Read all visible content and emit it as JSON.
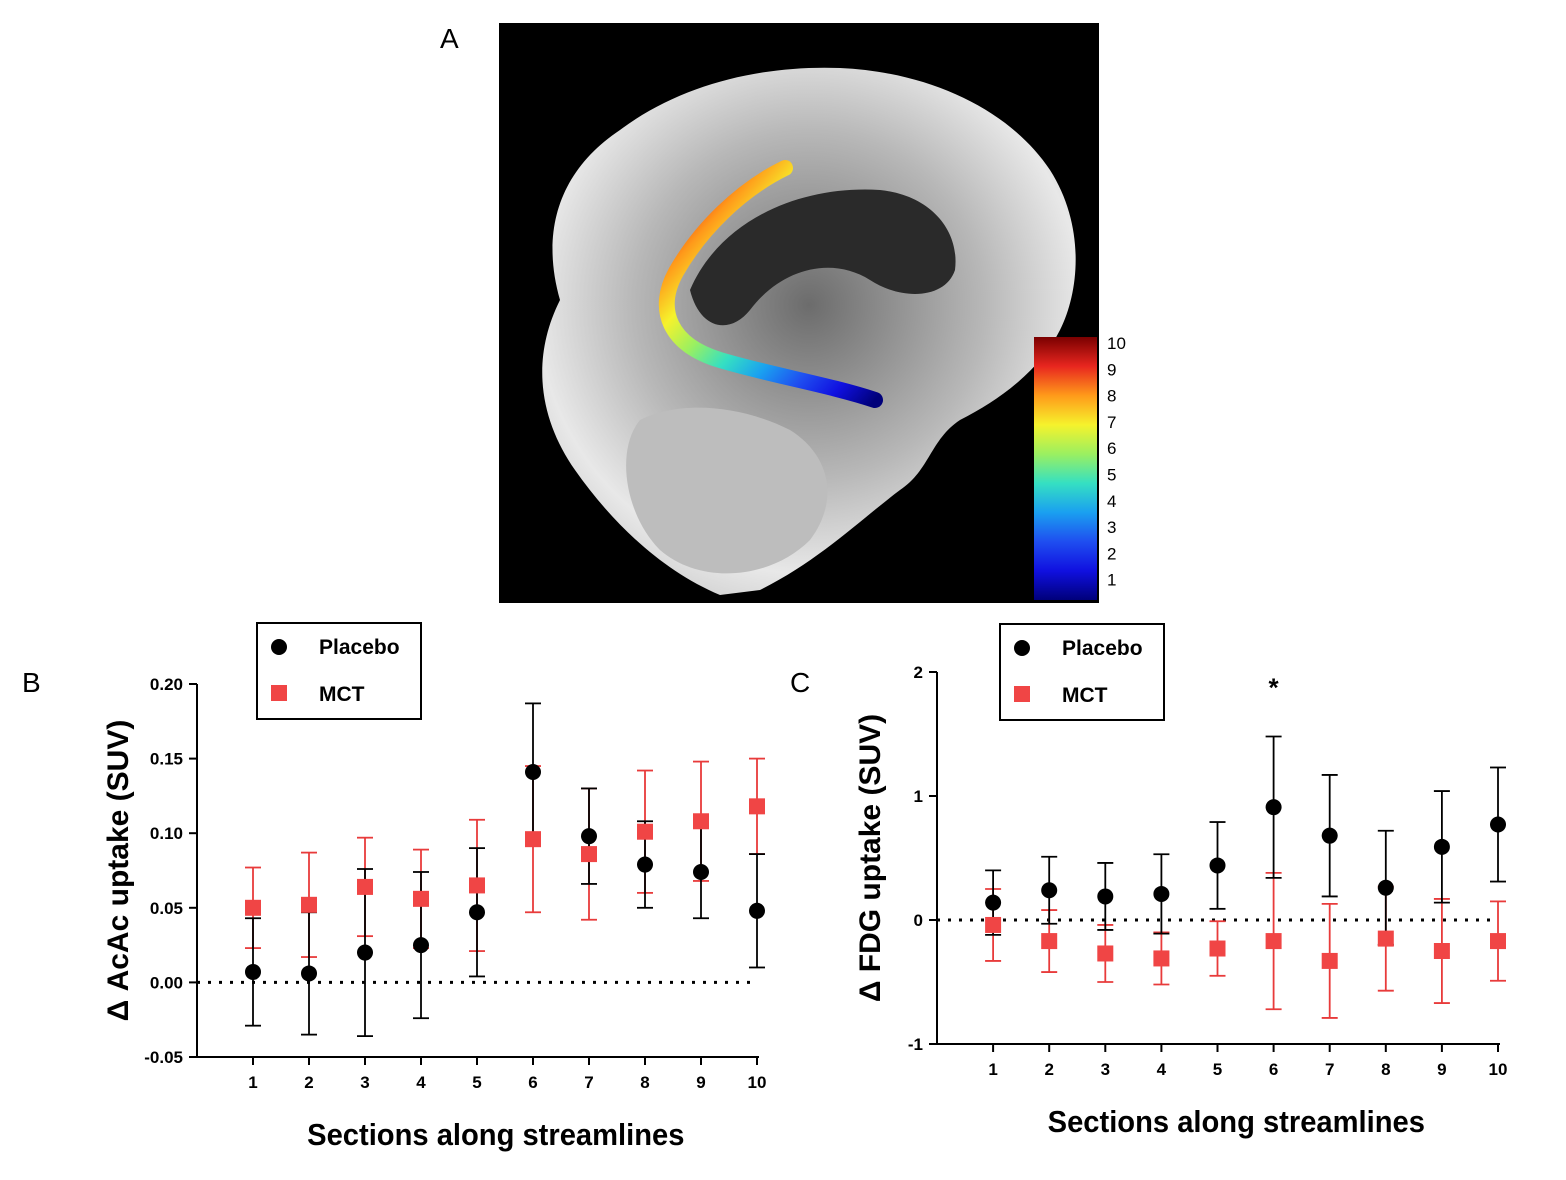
{
  "panel_labels": {
    "a": "A",
    "b": "B",
    "c": "C"
  },
  "colorbar": {
    "ticks": [
      "10",
      "9",
      "8",
      "7",
      "6",
      "5",
      "4",
      "3",
      "2",
      "1"
    ],
    "stops": [
      "#7a0000",
      "#e8261f",
      "#ff9a1a",
      "#f6f22c",
      "#9bf060",
      "#35e0c2",
      "#1aa0f0",
      "#1f4ef0",
      "#1010e0",
      "#00007a"
    ]
  },
  "colors": {
    "placebo": "#000000",
    "mct": "#f04545",
    "mct_err": "#e83b3b"
  },
  "chart_data": [
    {
      "type": "scatter",
      "panel": "B",
      "xlabel": "Sections along streamlines",
      "ylabel": "Δ AcAc uptake (SUV)",
      "ylim": [
        -0.05,
        0.2
      ],
      "yticks": [
        -0.05,
        0.0,
        0.05,
        0.1,
        0.15,
        0.2
      ],
      "ytick_labels": [
        "-0.05",
        "0.00",
        "0.05",
        "0.10",
        "0.15",
        "0.20"
      ],
      "xlim": [
        0,
        10
      ],
      "categories": [
        "1",
        "2",
        "3",
        "4",
        "5",
        "6",
        "7",
        "8",
        "9",
        "10"
      ],
      "reference_line": 0,
      "legend": {
        "position": "top-left",
        "entries": [
          "Placebo",
          "MCT"
        ]
      },
      "annotations": [],
      "series": [
        {
          "name": "Placebo",
          "marker": "circle",
          "values": [
            0.007,
            0.006,
            0.02,
            0.025,
            0.047,
            0.141,
            0.098,
            0.079,
            0.074,
            0.048
          ],
          "err": [
            0.036,
            0.041,
            0.056,
            0.049,
            0.043,
            0.046,
            0.032,
            0.029,
            0.031,
            0.038
          ]
        },
        {
          "name": "MCT",
          "marker": "square",
          "values": [
            0.05,
            0.052,
            0.064,
            0.056,
            0.065,
            0.096,
            0.086,
            0.101,
            0.108,
            0.118
          ],
          "err": [
            0.027,
            0.035,
            0.033,
            0.033,
            0.044,
            0.049,
            0.044,
            0.041,
            0.04,
            0.032
          ]
        }
      ]
    },
    {
      "type": "scatter",
      "panel": "C",
      "xlabel": "Sections along streamlines",
      "ylabel": "Δ FDG uptake (SUV)",
      "ylim": [
        -1,
        2
      ],
      "yticks": [
        -1,
        0,
        1,
        2
      ],
      "ytick_labels": [
        "-1",
        "0",
        "1",
        "2"
      ],
      "xlim": [
        0,
        10
      ],
      "categories": [
        "1",
        "2",
        "3",
        "4",
        "5",
        "6",
        "7",
        "8",
        "9",
        "10"
      ],
      "reference_line": 0,
      "legend": {
        "position": "top-left",
        "entries": [
          "Placebo",
          "MCT"
        ]
      },
      "annotations": [
        {
          "text": "*",
          "category": "6",
          "y": 1.9
        }
      ],
      "series": [
        {
          "name": "Placebo",
          "marker": "circle",
          "values": [
            0.14,
            0.24,
            0.19,
            0.21,
            0.44,
            0.91,
            0.68,
            0.26,
            0.59,
            0.77
          ],
          "err": [
            0.26,
            0.27,
            0.27,
            0.32,
            0.35,
            0.57,
            0.49,
            0.46,
            0.45,
            0.46
          ]
        },
        {
          "name": "MCT",
          "marker": "square",
          "values": [
            -0.04,
            -0.17,
            -0.27,
            -0.31,
            -0.23,
            -0.17,
            -0.33,
            -0.15,
            -0.25,
            -0.17
          ],
          "err": [
            0.29,
            0.25,
            0.23,
            0.21,
            0.22,
            0.55,
            0.46,
            0.42,
            0.42,
            0.32
          ]
        }
      ]
    }
  ]
}
